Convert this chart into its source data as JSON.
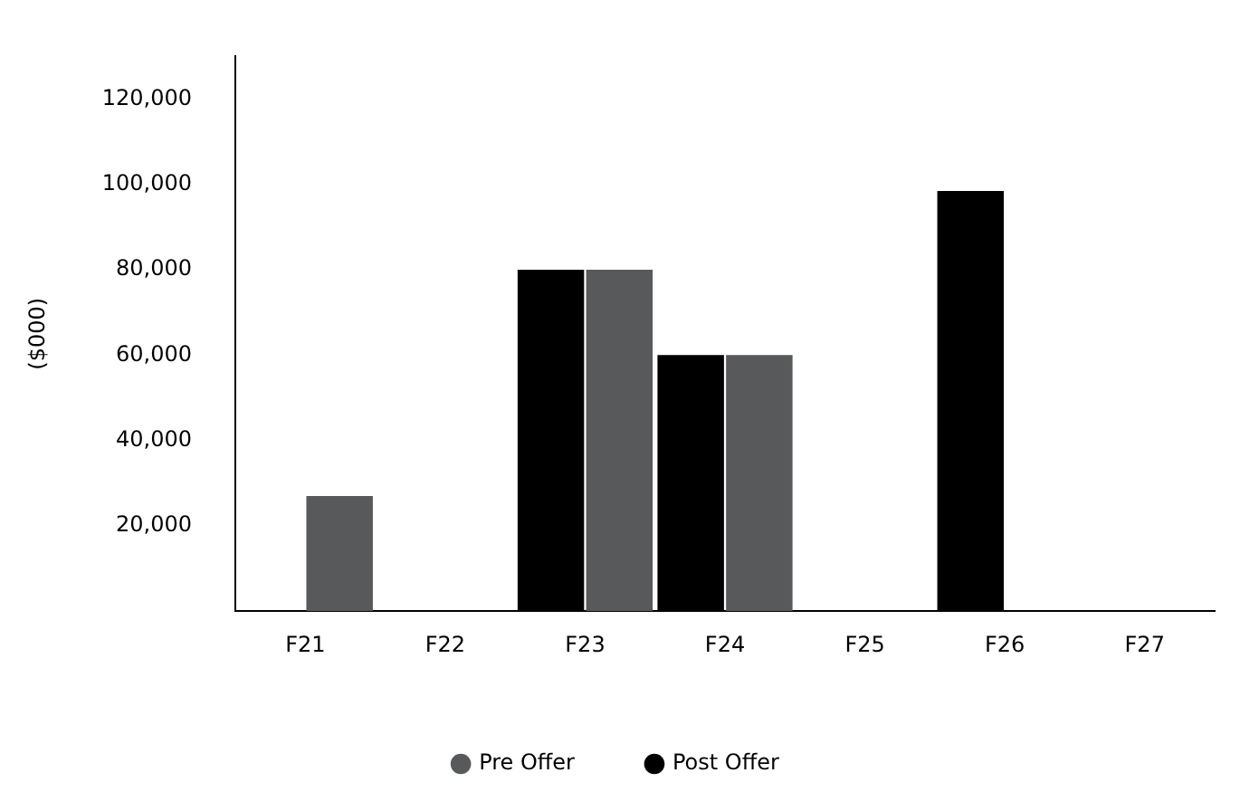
{
  "chart_data": {
    "type": "bar",
    "ylabel": "($000)",
    "categories": [
      "F21",
      "F22",
      "F23",
      "F24",
      "F25",
      "F26",
      "F27"
    ],
    "series": [
      {
        "name": "Pre Offer",
        "color": "#58595b",
        "values": [
          27000,
          null,
          80000,
          60000,
          null,
          null,
          null
        ]
      },
      {
        "name": "Post Offer",
        "color": "#000000",
        "values": [
          null,
          null,
          80000,
          60000,
          null,
          98500,
          null
        ]
      }
    ],
    "ylim": [
      0,
      130000
    ],
    "yticks": [
      {
        "value": 20000,
        "label": "20,000"
      },
      {
        "value": 40000,
        "label": "40,000"
      },
      {
        "value": 60000,
        "label": "60,000"
      },
      {
        "value": 80000,
        "label": "80,000"
      },
      {
        "value": 100000,
        "label": "100,000"
      },
      {
        "value": 120000,
        "label": "120,000"
      }
    ],
    "grid": false,
    "legend": "bottom"
  }
}
